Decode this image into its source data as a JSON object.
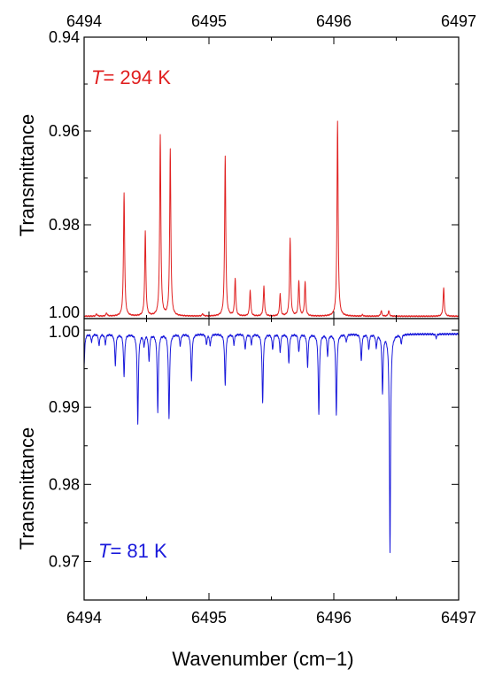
{
  "chart_data": [
    {
      "type": "line",
      "panel": "top",
      "annotation": {
        "italic": "T",
        "rest": "= 294 K"
      },
      "ylabel": "Transmittance",
      "xlabel": "",
      "xlim": [
        6494,
        6497
      ],
      "ylim": [
        1.0,
        0.94
      ],
      "y_axis_inverted": true,
      "x_ticks": [
        6494,
        6495,
        6496,
        6497
      ],
      "x_tick_labels": [
        "6494",
        "6495",
        "6496",
        "6497"
      ],
      "y_ticks": [
        0.94,
        0.96,
        0.98,
        1.0
      ],
      "y_tick_labels": [
        "0.94",
        "0.96",
        "0.98",
        "1.00"
      ],
      "baseline": 0.9995,
      "series": [
        {
          "color": "#e02020",
          "lines": [
            {
              "x": 6494.1,
              "y": 0.999
            },
            {
              "x": 6494.18,
              "y": 0.9988
            },
            {
              "x": 6494.32,
              "y": 0.9732
            },
            {
              "x": 6494.49,
              "y": 0.9815
            },
            {
              "x": 6494.61,
              "y": 0.961
            },
            {
              "x": 6494.69,
              "y": 0.964
            },
            {
              "x": 6494.95,
              "y": 0.999
            },
            {
              "x": 6495.13,
              "y": 0.9653
            },
            {
              "x": 6495.21,
              "y": 0.9915
            },
            {
              "x": 6495.33,
              "y": 0.994
            },
            {
              "x": 6495.44,
              "y": 0.9932
            },
            {
              "x": 6495.57,
              "y": 0.9948
            },
            {
              "x": 6495.65,
              "y": 0.983
            },
            {
              "x": 6495.72,
              "y": 0.992
            },
            {
              "x": 6495.77,
              "y": 0.9922
            },
            {
              "x": 6496.03,
              "y": 0.958
            },
            {
              "x": 6496.23,
              "y": 0.9992
            },
            {
              "x": 6496.38,
              "y": 0.9983
            },
            {
              "x": 6496.44,
              "y": 0.9983
            },
            {
              "x": 6496.88,
              "y": 0.9935
            }
          ]
        }
      ]
    },
    {
      "type": "line",
      "panel": "bottom",
      "annotation": {
        "italic": "T",
        "rest": "= 81 K"
      },
      "ylabel": "Transmittance",
      "xlabel": "Wavenumber (cm−1)",
      "xlim": [
        6494,
        6497
      ],
      "ylim": [
        0.965,
        1.0015
      ],
      "x_ticks": [
        6494,
        6495,
        6496,
        6497
      ],
      "x_tick_labels": [
        "6494",
        "6495",
        "6496",
        "6497"
      ],
      "y_ticks": [
        0.97,
        0.98,
        0.99,
        1.0
      ],
      "y_tick_labels": [
        "0.97",
        "0.98",
        "0.99",
        "1.00"
      ],
      "baseline": 0.9995,
      "series": [
        {
          "color": "#1a1adb",
          "lines": [
            {
              "x": 6494.0,
              "y": 0.9955
            },
            {
              "x": 6494.06,
              "y": 0.9985
            },
            {
              "x": 6494.12,
              "y": 0.998
            },
            {
              "x": 6494.17,
              "y": 0.9982
            },
            {
              "x": 6494.25,
              "y": 0.9955
            },
            {
              "x": 6494.32,
              "y": 0.994
            },
            {
              "x": 6494.43,
              "y": 0.988
            },
            {
              "x": 6494.48,
              "y": 0.998
            },
            {
              "x": 6494.52,
              "y": 0.996
            },
            {
              "x": 6494.59,
              "y": 0.9895
            },
            {
              "x": 6494.68,
              "y": 0.9885
            },
            {
              "x": 6494.77,
              "y": 0.998
            },
            {
              "x": 6494.86,
              "y": 0.9935
            },
            {
              "x": 6494.98,
              "y": 0.9982
            },
            {
              "x": 6495.01,
              "y": 0.998
            },
            {
              "x": 6495.13,
              "y": 0.9928
            },
            {
              "x": 6495.2,
              "y": 0.9982
            },
            {
              "x": 6495.29,
              "y": 0.9975
            },
            {
              "x": 6495.34,
              "y": 0.9982
            },
            {
              "x": 6495.43,
              "y": 0.9905
            },
            {
              "x": 6495.51,
              "y": 0.9975
            },
            {
              "x": 6495.57,
              "y": 0.9972
            },
            {
              "x": 6495.64,
              "y": 0.9957
            },
            {
              "x": 6495.72,
              "y": 0.9972
            },
            {
              "x": 6495.79,
              "y": 0.9953
            },
            {
              "x": 6495.88,
              "y": 0.989
            },
            {
              "x": 6495.95,
              "y": 0.9968
            },
            {
              "x": 6496.02,
              "y": 0.989
            },
            {
              "x": 6496.1,
              "y": 0.9985
            },
            {
              "x": 6496.22,
              "y": 0.996
            },
            {
              "x": 6496.28,
              "y": 0.9975
            },
            {
              "x": 6496.34,
              "y": 0.9978
            },
            {
              "x": 6496.39,
              "y": 0.992
            },
            {
              "x": 6496.45,
              "y": 0.9713
            },
            {
              "x": 6496.54,
              "y": 0.9983
            },
            {
              "x": 6496.82,
              "y": 0.999
            }
          ]
        }
      ]
    }
  ]
}
